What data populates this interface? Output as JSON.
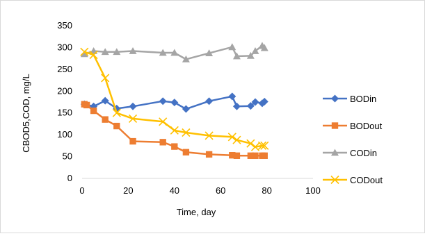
{
  "chart_data": {
    "type": "line",
    "title": "",
    "xlabel": "Time, day",
    "ylabel": "CBOD5,COD, mg/L",
    "xlim": [
      0,
      100
    ],
    "ylim": [
      0,
      350
    ],
    "x_ticks": [
      "0",
      "20",
      "40",
      "60",
      "80",
      "100"
    ],
    "y_ticks": [
      "0",
      "50",
      "100",
      "150",
      "200",
      "250",
      "300",
      "350"
    ],
    "grid": false,
    "legend_position": "right",
    "series": [
      {
        "name": "BODin",
        "color": "#4472C4",
        "marker": "diamond",
        "points": [
          [
            1,
            170
          ],
          [
            5,
            165
          ],
          [
            10,
            178
          ],
          [
            15,
            160
          ],
          [
            22,
            165
          ],
          [
            35,
            177
          ],
          [
            40,
            174
          ],
          [
            45,
            159
          ],
          [
            55,
            177
          ],
          [
            65,
            188
          ],
          [
            67,
            165
          ],
          [
            73,
            166
          ],
          [
            75,
            175
          ],
          [
            78,
            172
          ],
          [
            79,
            176
          ]
        ]
      },
      {
        "name": "BODout",
        "color": "#ED7D31",
        "marker": "square",
        "points": [
          [
            1,
            170
          ],
          [
            2,
            168
          ],
          [
            5,
            155
          ],
          [
            10,
            135
          ],
          [
            15,
            120
          ],
          [
            22,
            85
          ],
          [
            35,
            83
          ],
          [
            40,
            73
          ],
          [
            45,
            60
          ],
          [
            55,
            55
          ],
          [
            65,
            53
          ],
          [
            67,
            52
          ],
          [
            73,
            52
          ],
          [
            75,
            52
          ],
          [
            78,
            52
          ],
          [
            79,
            52
          ]
        ]
      },
      {
        "name": "CODin",
        "color": "#A5A5A5",
        "marker": "triangle",
        "points": [
          [
            1,
            285
          ],
          [
            5,
            292
          ],
          [
            10,
            290
          ],
          [
            15,
            290
          ],
          [
            22,
            292
          ],
          [
            35,
            288
          ],
          [
            40,
            288
          ],
          [
            45,
            273
          ],
          [
            55,
            287
          ],
          [
            65,
            301
          ],
          [
            67,
            280
          ],
          [
            73,
            281
          ],
          [
            75,
            292
          ],
          [
            78,
            304
          ],
          [
            79,
            299
          ]
        ]
      },
      {
        "name": "CODout",
        "color": "#FFC000",
        "marker": "x",
        "points": [
          [
            1,
            290
          ],
          [
            5,
            283
          ],
          [
            10,
            230
          ],
          [
            15,
            150
          ],
          [
            22,
            137
          ],
          [
            35,
            130
          ],
          [
            40,
            110
          ],
          [
            45,
            105
          ],
          [
            55,
            98
          ],
          [
            65,
            95
          ],
          [
            67,
            88
          ],
          [
            73,
            80
          ],
          [
            75,
            72
          ],
          [
            78,
            75
          ],
          [
            79,
            75
          ]
        ]
      }
    ]
  }
}
